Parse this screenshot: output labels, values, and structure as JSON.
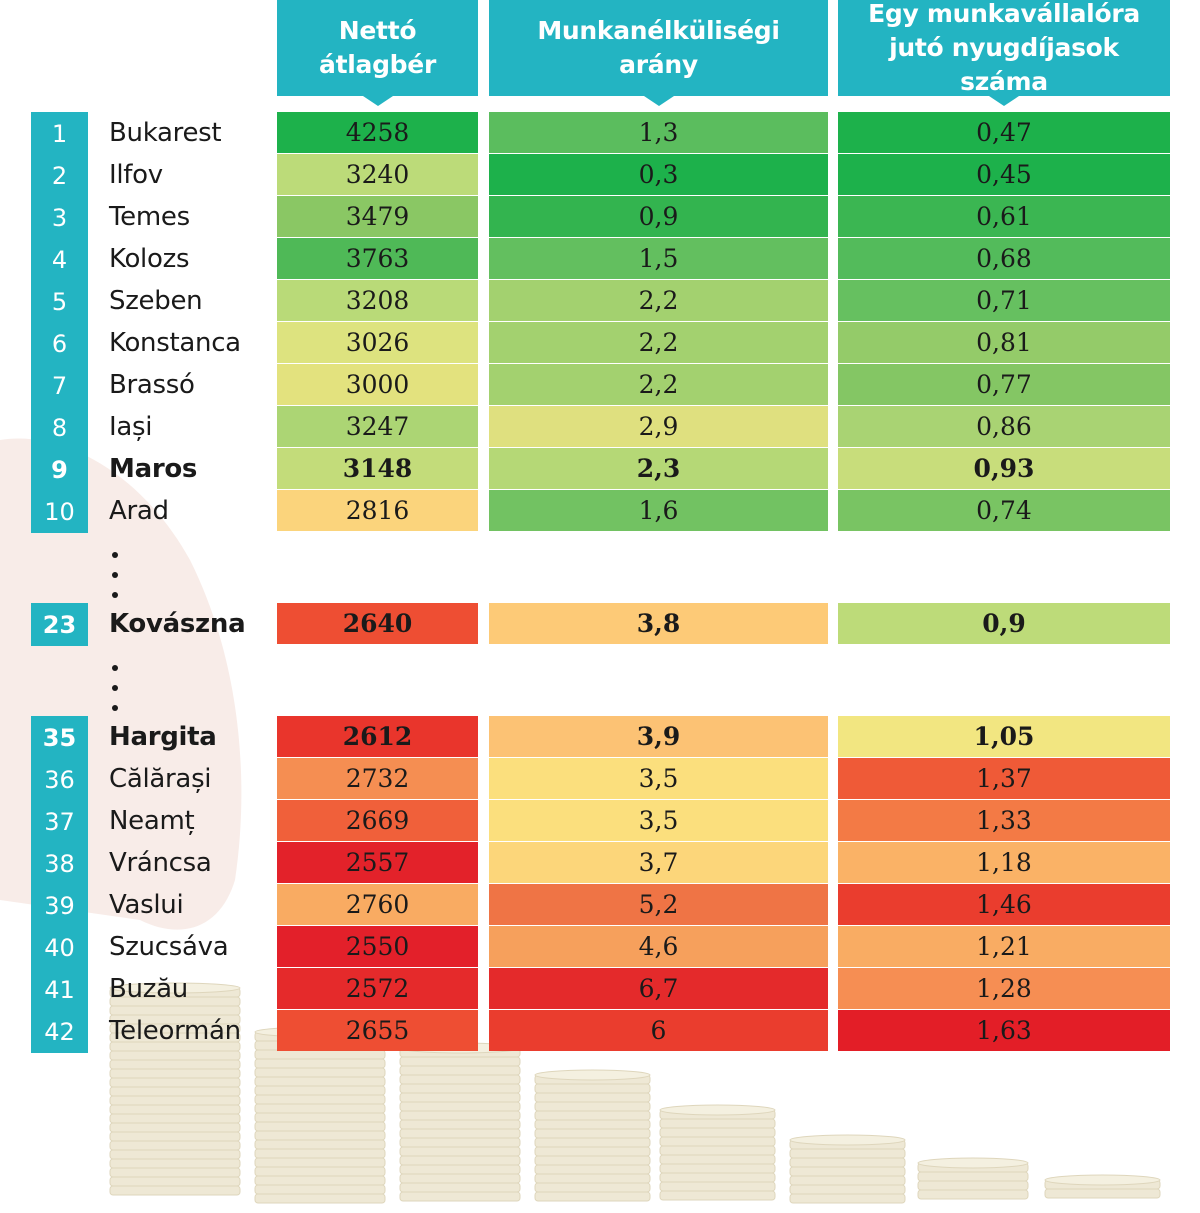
{
  "columns": [
    {
      "label": "Nettó átlagbér"
    },
    {
      "label": "Munkanélküliségi arány"
    },
    {
      "label": "Egy munkavállalóra jutó nyugdíjasok száma"
    }
  ],
  "colors": {
    "header": "#23b4c2",
    "rank_box": "#23b4c2",
    "scale_best": "#1db14b",
    "scale_mid": "#f5e47a",
    "scale_worst": "#e41e26"
  },
  "chart_data": {
    "type": "table",
    "columns": [
      "Nettó átlagbér",
      "Munkanélküliségi arány",
      "Egy munkavállalóra jutó nyugdíjasok száma"
    ],
    "rows": [
      {
        "rank": "1",
        "county": "Bukarest",
        "values": [
          "4258",
          "1,3",
          "0,47"
        ],
        "colors": [
          "#1db14b",
          "#5bbd5e",
          "#1db14b"
        ]
      },
      {
        "rank": "2",
        "county": "Ilfov",
        "values": [
          "3240",
          "0,3",
          "0,45"
        ],
        "colors": [
          "#bcdb79",
          "#1db14b",
          "#1db14b"
        ]
      },
      {
        "rank": "3",
        "county": "Temes",
        "values": [
          "3479",
          "0,9",
          "0,61"
        ],
        "colors": [
          "#8ac764",
          "#33b44f",
          "#3bb652"
        ]
      },
      {
        "rank": "4",
        "county": "Kolozs",
        "values": [
          "3763",
          "1,5",
          "0,68"
        ],
        "colors": [
          "#4fb957",
          "#63bf5f",
          "#53bb5b"
        ]
      },
      {
        "rank": "5",
        "county": "Szeben",
        "values": [
          "3208",
          "2,2",
          "0,71"
        ],
        "colors": [
          "#b9da78",
          "#a3d16f",
          "#66c060"
        ]
      },
      {
        "rank": "6",
        "county": "Konstanca",
        "values": [
          "3026",
          "2,2",
          "0,81"
        ],
        "colors": [
          "#dde37f",
          "#a3d16f",
          "#94cb69"
        ]
      },
      {
        "rank": "7",
        "county": "Brassó",
        "values": [
          "3000",
          "2,2",
          "0,77"
        ],
        "colors": [
          "#e3e27e",
          "#a3d16f",
          "#84c664"
        ]
      },
      {
        "rank": "8",
        "county": "Iași",
        "values": [
          "3247",
          "2,9",
          "0,86"
        ],
        "colors": [
          "#acd574",
          "#dfe07f",
          "#a9d373"
        ]
      },
      {
        "rank": "9",
        "county": "Maros",
        "values": [
          "3148",
          "2,3",
          "0,93"
        ],
        "colors": [
          "#c3dc7a",
          "#b5d876",
          "#c8dd7b"
        ],
        "highlight": true
      },
      {
        "rank": "10",
        "county": "Arad",
        "values": [
          "2816",
          "1,6",
          "0,74"
        ],
        "colors": [
          "#fbd47c",
          "#72c262",
          "#79c463"
        ]
      },
      {
        "rank": "23",
        "county": "Kovászna",
        "values": [
          "2640",
          "3,8",
          "0,9"
        ],
        "colors": [
          "#ee4e33",
          "#fdca77",
          "#bddb79"
        ],
        "highlight": true,
        "gap_before": true
      },
      {
        "rank": "35",
        "county": "Hargita",
        "values": [
          "2612",
          "3,9",
          "1,05"
        ],
        "colors": [
          "#e9352c",
          "#fcc274",
          "#f2e681"
        ],
        "highlight": true,
        "gap_before": true
      },
      {
        "rank": "36",
        "county": "Călărași",
        "values": [
          "2732",
          "3,5",
          "1,37"
        ],
        "colors": [
          "#f58e52",
          "#fbdf7d",
          "#ef5a37"
        ]
      },
      {
        "rank": "37",
        "county": "Neamț",
        "values": [
          "2669",
          "3,5",
          "1,33"
        ],
        "colors": [
          "#f0603a",
          "#fbdf7d",
          "#f37a45"
        ]
      },
      {
        "rank": "38",
        "county": "Vráncsa",
        "values": [
          "2557",
          "3,7",
          "1,18"
        ],
        "colors": [
          "#e3222a",
          "#fcd67a",
          "#fab266"
        ]
      },
      {
        "rank": "39",
        "county": "Vaslui",
        "values": [
          "2760",
          "5,2",
          "1,46"
        ],
        "colors": [
          "#f9ab62",
          "#ef7445",
          "#ea3d2e"
        ]
      },
      {
        "rank": "40",
        "county": "Szucsáva",
        "values": [
          "2550",
          "4,6",
          "1,21"
        ],
        "colors": [
          "#e3202a",
          "#f6a05c",
          "#f9ac63"
        ]
      },
      {
        "rank": "41",
        "county": "Buzău",
        "values": [
          "2572",
          "6,7",
          "1,28"
        ],
        "colors": [
          "#e52a2b",
          "#e42a2b",
          "#f68e53"
        ]
      },
      {
        "rank": "42",
        "county": "Teleormán",
        "values": [
          "2655",
          "6",
          "1,63"
        ],
        "colors": [
          "#ee4e33",
          "#ea3d2e",
          "#e31e27"
        ]
      }
    ]
  }
}
